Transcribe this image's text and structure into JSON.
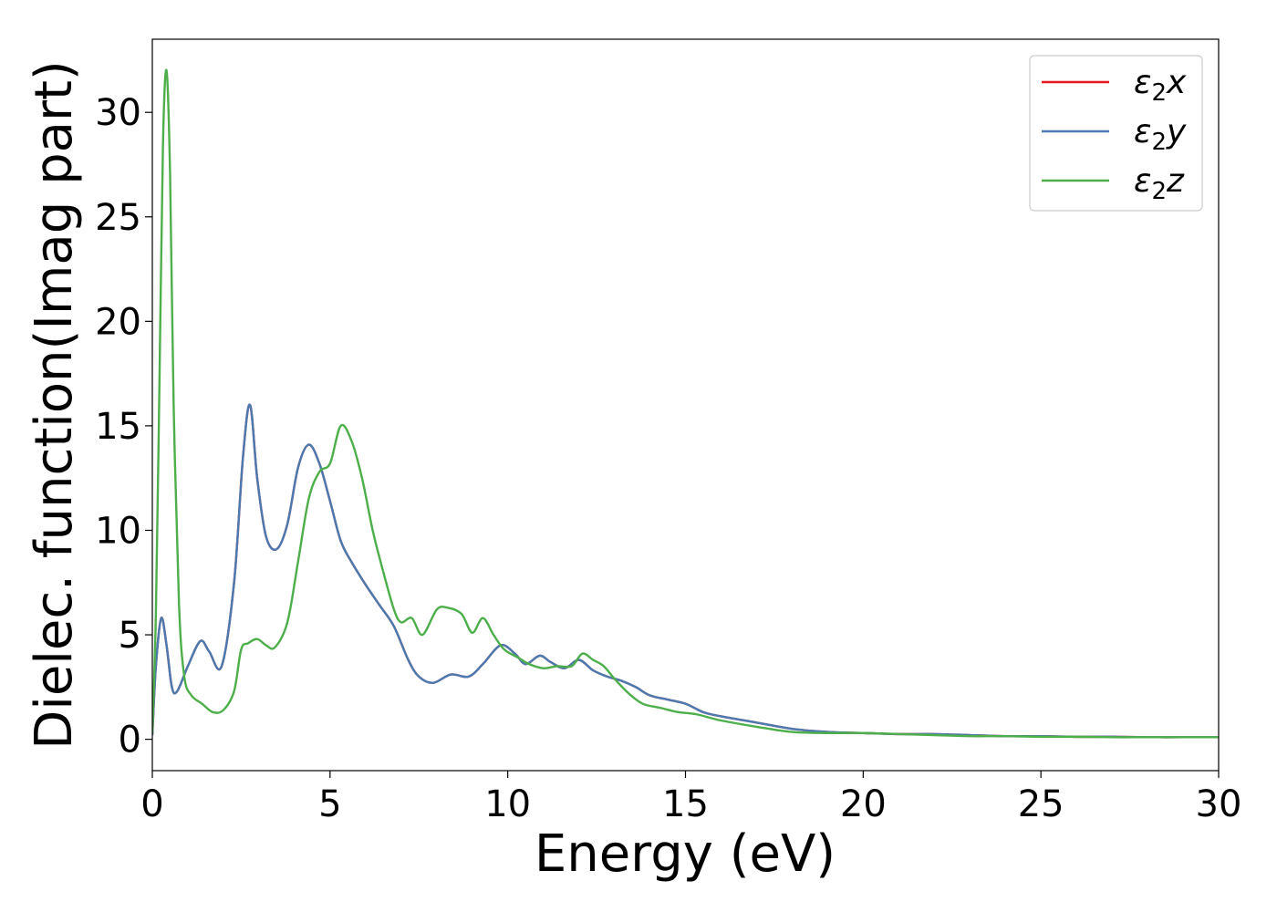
{
  "chart_data": {
    "type": "line",
    "title": "",
    "xlabel": "Energy (eV)",
    "ylabel": "Dielec. function(Imag part)",
    "xlim": [
      0,
      30
    ],
    "ylim": [
      -1.5,
      33.5
    ],
    "xticks": [
      0,
      5,
      10,
      15,
      20,
      25,
      30
    ],
    "yticks": [
      0,
      5,
      10,
      15,
      20,
      25,
      30
    ],
    "grid": false,
    "legend_position": "top-right",
    "series": [
      {
        "name": "ε2x",
        "legend": {
          "base": "ε",
          "sub": "2",
          "suffix": "x"
        },
        "color": "#e41a1c",
        "x": [
          0,
          0.1,
          0.25,
          0.4,
          0.55,
          0.7,
          1.0,
          1.35,
          1.6,
          1.95,
          2.3,
          2.55,
          2.75,
          2.95,
          3.2,
          3.5,
          3.8,
          4.1,
          4.4,
          4.7,
          5.0,
          5.3,
          5.6,
          6.0,
          6.4,
          6.8,
          7.2,
          7.5,
          7.9,
          8.4,
          8.9,
          9.3,
          9.8,
          10.2,
          10.5,
          10.9,
          11.2,
          11.6,
          12.0,
          12.4,
          12.8,
          13.2,
          13.6,
          14.0,
          14.5,
          15.0,
          15.5,
          16.0,
          17.0,
          18.0,
          19.0,
          20.0,
          21.0,
          22.0,
          23.0,
          24.0,
          25.0,
          26.0,
          27.0,
          28.0,
          29.0,
          30.0
        ],
        "y": [
          0.2,
          3.5,
          5.8,
          4.5,
          2.5,
          2.3,
          3.5,
          4.7,
          4.2,
          3.5,
          7.5,
          13.5,
          16.0,
          12.5,
          9.7,
          9.1,
          10.3,
          13.0,
          14.1,
          13.2,
          11.4,
          9.5,
          8.5,
          7.4,
          6.4,
          5.4,
          3.8,
          3.0,
          2.7,
          3.1,
          3.0,
          3.6,
          4.5,
          4.1,
          3.6,
          4.0,
          3.7,
          3.4,
          3.8,
          3.3,
          3.0,
          2.8,
          2.5,
          2.1,
          1.9,
          1.7,
          1.3,
          1.1,
          0.8,
          0.5,
          0.35,
          0.3,
          0.25,
          0.25,
          0.2,
          0.15,
          0.15,
          0.12,
          0.12,
          0.1,
          0.1,
          0.1
        ]
      },
      {
        "name": "ε2y",
        "legend": {
          "base": "ε",
          "sub": "2",
          "suffix": "y"
        },
        "color": "#4a7ab0",
        "x": [
          0,
          0.1,
          0.25,
          0.4,
          0.55,
          0.7,
          1.0,
          1.35,
          1.6,
          1.95,
          2.3,
          2.55,
          2.75,
          2.95,
          3.2,
          3.5,
          3.8,
          4.1,
          4.4,
          4.7,
          5.0,
          5.3,
          5.6,
          6.0,
          6.4,
          6.8,
          7.2,
          7.5,
          7.9,
          8.4,
          8.9,
          9.3,
          9.8,
          10.2,
          10.5,
          10.9,
          11.2,
          11.6,
          12.0,
          12.4,
          12.8,
          13.2,
          13.6,
          14.0,
          14.5,
          15.0,
          15.5,
          16.0,
          17.0,
          18.0,
          19.0,
          20.0,
          21.0,
          22.0,
          23.0,
          24.0,
          25.0,
          26.0,
          27.0,
          28.0,
          29.0,
          30.0
        ],
        "y": [
          0.2,
          3.5,
          5.8,
          4.5,
          2.5,
          2.3,
          3.5,
          4.7,
          4.2,
          3.5,
          7.5,
          13.5,
          16.0,
          12.5,
          9.7,
          9.1,
          10.3,
          13.0,
          14.1,
          13.2,
          11.4,
          9.5,
          8.5,
          7.4,
          6.4,
          5.4,
          3.8,
          3.0,
          2.7,
          3.1,
          3.0,
          3.6,
          4.5,
          4.1,
          3.6,
          4.0,
          3.7,
          3.4,
          3.8,
          3.3,
          3.0,
          2.8,
          2.5,
          2.1,
          1.9,
          1.7,
          1.3,
          1.1,
          0.8,
          0.5,
          0.35,
          0.3,
          0.25,
          0.25,
          0.2,
          0.15,
          0.15,
          0.12,
          0.12,
          0.1,
          0.1,
          0.1
        ]
      },
      {
        "name": "ε2z",
        "legend": {
          "base": "ε",
          "sub": "2",
          "suffix": "z"
        },
        "color": "#4daf4a",
        "x": [
          0,
          0.1,
          0.2,
          0.3,
          0.4,
          0.5,
          0.6,
          0.75,
          0.9,
          1.1,
          1.4,
          1.7,
          2.0,
          2.3,
          2.5,
          2.7,
          2.95,
          3.2,
          3.45,
          3.8,
          4.1,
          4.4,
          4.7,
          5.0,
          5.3,
          5.6,
          5.9,
          6.2,
          6.5,
          6.8,
          7.0,
          7.3,
          7.6,
          8.0,
          8.3,
          8.7,
          9.0,
          9.3,
          9.6,
          9.9,
          10.3,
          10.6,
          11.0,
          11.4,
          11.8,
          12.1,
          12.4,
          12.7,
          13.0,
          13.4,
          13.8,
          14.3,
          14.8,
          15.3,
          16.0,
          17.0,
          18.0,
          19.0,
          20.0,
          21.0,
          22.0,
          23.0,
          24.0,
          25.0,
          26.0,
          27.0,
          28.0,
          29.0,
          30.0
        ],
        "y": [
          0.3,
          6.0,
          17.0,
          28.5,
          32.0,
          27.0,
          16.0,
          6.5,
          3.0,
          2.1,
          1.7,
          1.3,
          1.4,
          2.3,
          4.3,
          4.6,
          4.8,
          4.5,
          4.4,
          5.6,
          8.5,
          11.5,
          12.8,
          13.2,
          15.0,
          14.3,
          12.5,
          10.0,
          8.0,
          6.2,
          5.6,
          5.8,
          5.0,
          6.2,
          6.3,
          6.0,
          5.1,
          5.8,
          5.0,
          4.3,
          3.9,
          3.6,
          3.4,
          3.5,
          3.5,
          4.1,
          3.8,
          3.5,
          2.9,
          2.2,
          1.7,
          1.5,
          1.3,
          1.2,
          0.9,
          0.6,
          0.35,
          0.3,
          0.3,
          0.25,
          0.2,
          0.15,
          0.15,
          0.12,
          0.12,
          0.1,
          0.1,
          0.1,
          0.1
        ]
      }
    ]
  }
}
